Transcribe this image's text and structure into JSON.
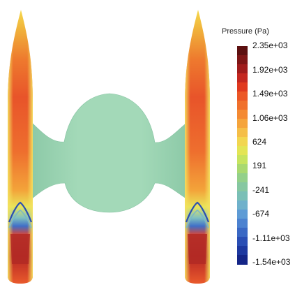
{
  "legend": {
    "title": "Pressure (Pa)",
    "tick_labels": [
      "2.35e+03",
      "1.92e+03",
      "1.49e+03",
      "1.06e+03",
      "624",
      "191",
      "-241",
      "-674",
      "-1.11e+03",
      "-1.54e+03"
    ],
    "bands": [
      "#5c1010",
      "#7e1616",
      "#a01c1c",
      "#c42720",
      "#e0391f",
      "#ec5726",
      "#f0702c",
      "#f48a33",
      "#f5a43c",
      "#f5be48",
      "#f2d650",
      "#e3e555",
      "#c7e45f",
      "#a9d970",
      "#93d08a",
      "#86c7a1",
      "#7abfb6",
      "#6fb1cb",
      "#5e9bd5",
      "#4c82d0",
      "#3a68c4",
      "#2a4eb4",
      "#1d389f",
      "#142587"
    ]
  },
  "colors": {
    "membrane": "#9fd6b4",
    "membrane_shade": "#83c19f",
    "background": "#ffffff"
  }
}
